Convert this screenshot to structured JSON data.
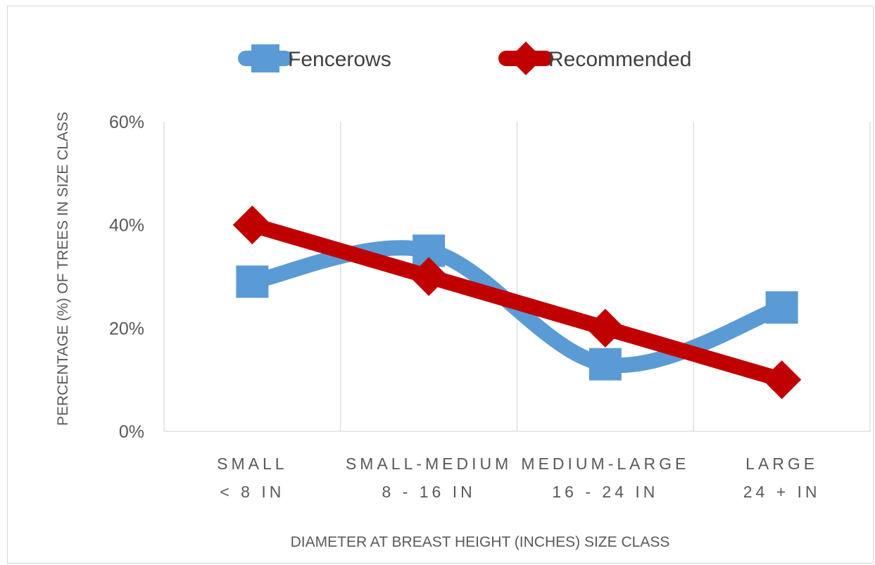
{
  "chart_data": {
    "type": "line",
    "categories": [
      [
        "SMALL",
        "< 8 IN"
      ],
      [
        "SMALL-MEDIUM",
        "8 - 16 IN"
      ],
      [
        "MEDIUM-LARGE",
        "16 - 24 IN"
      ],
      [
        "LARGE",
        "24 + IN"
      ]
    ],
    "series": [
      {
        "name": "Fencerows",
        "values": [
          0.29,
          0.35,
          0.13,
          0.24
        ],
        "color": "#5b9bd5",
        "marker": "square",
        "smooth": true
      },
      {
        "name": "Recommended",
        "values": [
          0.4,
          0.3,
          0.2,
          0.1
        ],
        "color": "#c00000",
        "marker": "diamond",
        "smooth": false
      }
    ],
    "title": "",
    "xlabel": "DIAMETER AT BREAST HEIGHT (INCHES) SIZE CLASS",
    "ylabel": "PERCENTAGE (%) OF TREES IN SIZE CLASS",
    "ylim": [
      0,
      0.6
    ],
    "yticks": [
      0,
      0.2,
      0.4,
      0.6
    ],
    "ytick_labels": [
      "0%",
      "20%",
      "40%",
      "60%"
    ],
    "grid": "vertical category separators",
    "legend_position": "top"
  }
}
